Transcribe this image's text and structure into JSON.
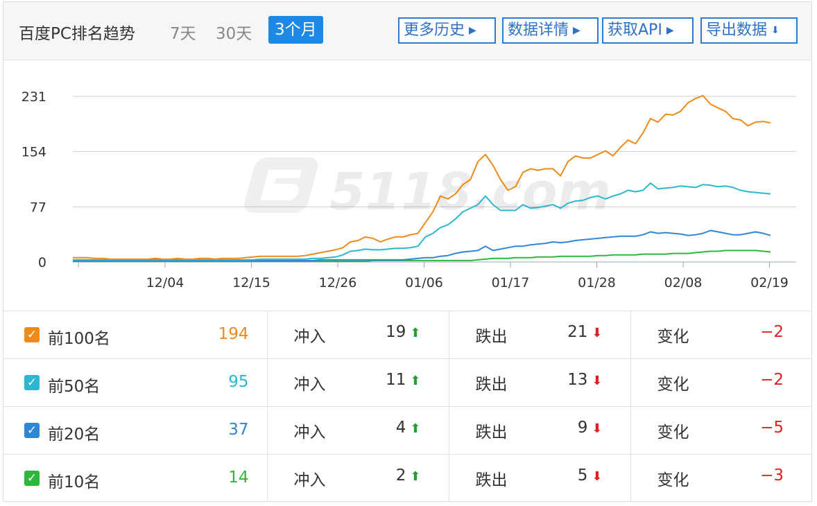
{
  "header": {
    "title": "百度PC排名趋势",
    "ranges": [
      "7天",
      "30天",
      "3个月"
    ],
    "active_range": "3个月",
    "buttons": {
      "history": "更多历史",
      "details": "数据详情",
      "api": "获取API",
      "export": "导出数据"
    }
  },
  "watermark": "5118.com",
  "colors": {
    "top100": "#f08a16",
    "top50": "#2bb7cf",
    "top20": "#2e86d6",
    "top10": "#2db83d",
    "accent": "#1e88e5",
    "down": "#e02020",
    "up": "#22a12e"
  },
  "chart_data": {
    "type": "line",
    "y_ticks": [
      "231",
      "154",
      "77",
      "0"
    ],
    "ylim": [
      0,
      231
    ],
    "x_ticks": [
      "12/04",
      "12/15",
      "12/26",
      "01/06",
      "01/17",
      "01/28",
      "02/08",
      "02/19"
    ],
    "grid": true,
    "series": [
      {
        "name": "前100名",
        "color": "#f08a16",
        "values": [
          6,
          6,
          6,
          5,
          5,
          4,
          4,
          4,
          4,
          4,
          4,
          5,
          4,
          4,
          5,
          4,
          4,
          5,
          5,
          4,
          5,
          5,
          5,
          6,
          7,
          8,
          8,
          8,
          8,
          8,
          8,
          9,
          11,
          13,
          15,
          17,
          20,
          28,
          30,
          35,
          33,
          28,
          32,
          35,
          35,
          38,
          40,
          55,
          70,
          92,
          88,
          95,
          108,
          115,
          140,
          150,
          135,
          115,
          100,
          105,
          125,
          130,
          128,
          130,
          130,
          120,
          140,
          148,
          145,
          145,
          150,
          155,
          148,
          160,
          170,
          165,
          180,
          200,
          195,
          206,
          205,
          210,
          222,
          228,
          232,
          220,
          215,
          210,
          200,
          198,
          190,
          195,
          196,
          194
        ]
      },
      {
        "name": "前50名",
        "color": "#2bb7cf",
        "values": [
          3,
          3,
          3,
          3,
          3,
          3,
          3,
          3,
          3,
          3,
          3,
          3,
          3,
          3,
          3,
          3,
          3,
          3,
          3,
          3,
          3,
          3,
          3,
          3,
          3,
          4,
          4,
          4,
          4,
          4,
          4,
          4,
          5,
          5,
          6,
          7,
          10,
          15,
          16,
          18,
          17,
          17,
          18,
          19,
          19,
          20,
          22,
          35,
          40,
          48,
          52,
          60,
          70,
          75,
          80,
          92,
          80,
          72,
          72,
          72,
          80,
          75,
          76,
          78,
          80,
          75,
          82,
          85,
          86,
          90,
          92,
          88,
          92,
          95,
          100,
          98,
          100,
          110,
          102,
          103,
          104,
          106,
          105,
          104,
          108,
          107,
          105,
          106,
          104,
          100,
          98,
          97,
          96,
          95
        ]
      },
      {
        "name": "前20名",
        "color": "#2e86d6",
        "values": [
          2,
          2,
          2,
          2,
          2,
          2,
          2,
          2,
          2,
          2,
          2,
          2,
          2,
          2,
          2,
          2,
          2,
          2,
          2,
          2,
          2,
          2,
          2,
          2,
          2,
          2,
          2,
          2,
          2,
          2,
          2,
          2,
          2,
          3,
          3,
          3,
          3,
          3,
          3,
          3,
          3,
          3,
          3,
          3,
          3,
          4,
          5,
          6,
          6,
          8,
          9,
          12,
          14,
          15,
          16,
          22,
          16,
          18,
          20,
          22,
          22,
          24,
          25,
          26,
          28,
          27,
          28,
          30,
          31,
          32,
          33,
          34,
          35,
          36,
          36,
          36,
          38,
          42,
          40,
          41,
          40,
          39,
          37,
          38,
          40,
          44,
          42,
          40,
          38,
          38,
          40,
          42,
          40,
          37
        ]
      },
      {
        "name": "前10名",
        "color": "#2db83d",
        "values": [
          1,
          1,
          1,
          1,
          1,
          1,
          1,
          1,
          1,
          1,
          1,
          1,
          1,
          1,
          1,
          1,
          1,
          1,
          1,
          1,
          1,
          1,
          1,
          1,
          1,
          1,
          1,
          1,
          1,
          1,
          1,
          1,
          1,
          1,
          1,
          1,
          1,
          1,
          1,
          1,
          2,
          2,
          2,
          2,
          2,
          2,
          2,
          2,
          2,
          2,
          2,
          2,
          2,
          2,
          3,
          4,
          5,
          5,
          5,
          6,
          6,
          6,
          7,
          7,
          7,
          8,
          8,
          8,
          8,
          8,
          9,
          9,
          10,
          10,
          10,
          10,
          11,
          11,
          11,
          11,
          12,
          12,
          12,
          13,
          14,
          15,
          15,
          16,
          16,
          16,
          16,
          16,
          15,
          14
        ]
      }
    ]
  },
  "rows": [
    {
      "label": "前100名",
      "total": "194",
      "in_label": "冲入",
      "in": "19",
      "out_label": "跌出",
      "out": "21",
      "chg_label": "变化",
      "chg": "−2",
      "color": "#f08a16"
    },
    {
      "label": "前50名",
      "total": "95",
      "in_label": "冲入",
      "in": "11",
      "out_label": "跌出",
      "out": "13",
      "chg_label": "变化",
      "chg": "−2",
      "color": "#2bb7cf"
    },
    {
      "label": "前20名",
      "total": "37",
      "in_label": "冲入",
      "in": "4",
      "out_label": "跌出",
      "out": "9",
      "chg_label": "变化",
      "chg": "−5",
      "color": "#2e86d6"
    },
    {
      "label": "前10名",
      "total": "14",
      "in_label": "冲入",
      "in": "2",
      "out_label": "跌出",
      "out": "5",
      "chg_label": "变化",
      "chg": "−3",
      "color": "#2db83d"
    }
  ]
}
